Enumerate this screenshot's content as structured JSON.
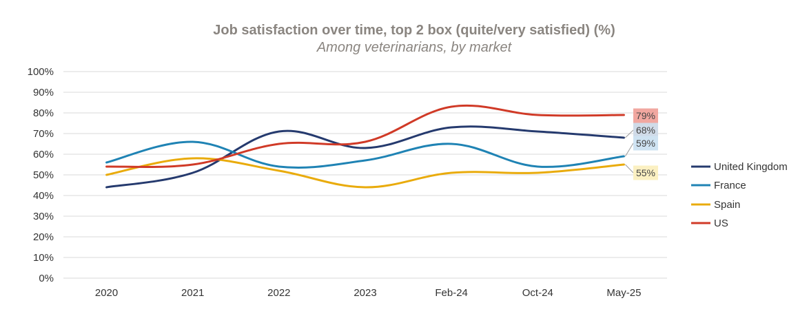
{
  "chart_data": {
    "type": "line",
    "title": "Job satisfaction over time, top 2 box (quite/very satisfied) (%)",
    "subtitle": "Among veterinarians, by market",
    "categories": [
      "2020",
      "2021",
      "2022",
      "2023",
      "Feb-24",
      "Oct-24",
      "May-25"
    ],
    "ylim": [
      0,
      100
    ],
    "yticks": [
      0,
      10,
      20,
      30,
      40,
      50,
      60,
      70,
      80,
      90,
      100
    ],
    "ytick_suffix": "%",
    "grid": true,
    "legend_position": "right",
    "series": [
      {
        "name": "United Kingdom",
        "key": "uk",
        "color": "#253a6e",
        "values": [
          44,
          51,
          71,
          63,
          73,
          71,
          68
        ],
        "end_label": "68%",
        "end_label_bg": "#d0dbe8"
      },
      {
        "name": "France",
        "key": "france",
        "color": "#1f83b4",
        "values": [
          56,
          66,
          54,
          57,
          65,
          54,
          59
        ],
        "end_label": "59%",
        "end_label_bg": "#cfe3f2"
      },
      {
        "name": "Spain",
        "key": "spain",
        "color": "#e9ab0c",
        "values": [
          50,
          58,
          52,
          44,
          51,
          51,
          55
        ],
        "end_label": "55%",
        "end_label_bg": "#fbf0c2"
      },
      {
        "name": "US",
        "key": "us",
        "color": "#d03a27",
        "values": [
          54,
          55,
          65,
          66,
          83,
          79,
          79
        ],
        "end_label": "79%",
        "end_label_bg": "#f1a7a0"
      }
    ]
  }
}
